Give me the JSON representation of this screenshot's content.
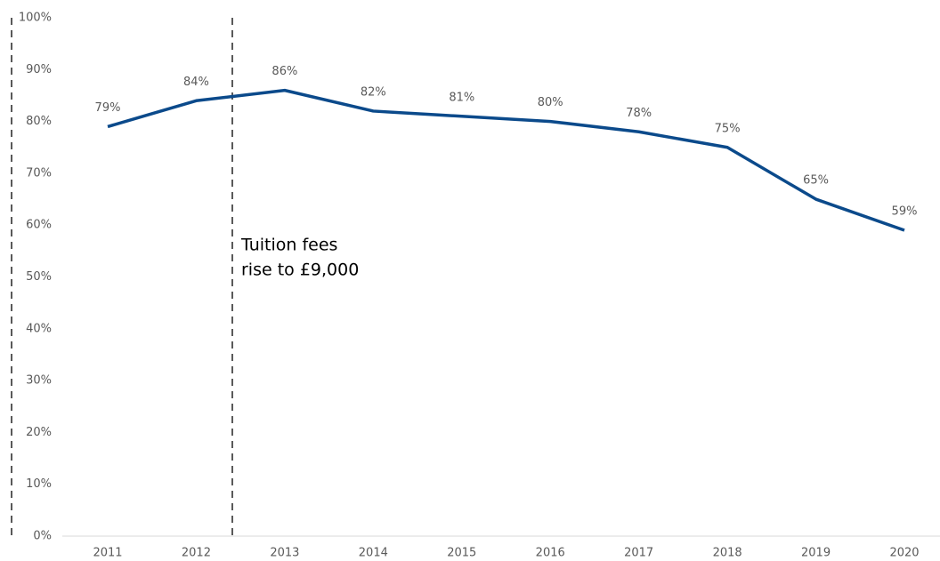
{
  "chart_data": {
    "type": "line",
    "categories": [
      "2011",
      "2012",
      "2013",
      "2014",
      "2015",
      "2016",
      "2017",
      "2018",
      "2019",
      "2020"
    ],
    "series": [
      {
        "name": null,
        "color": "#0b4a8b",
        "values": [
          79,
          84,
          86,
          82,
          81,
          80,
          78,
          75,
          65,
          59
        ],
        "value_labels": [
          "79%",
          "84%",
          "86%",
          "82%",
          "81%",
          "80%",
          "78%",
          "75%",
          "65%",
          "59%"
        ]
      }
    ],
    "ylim": [
      0,
      100
    ],
    "yticks": [
      {
        "value": 0,
        "label": "0%"
      },
      {
        "value": 10,
        "label": "10%"
      },
      {
        "value": 20,
        "label": "20%"
      },
      {
        "value": 30,
        "label": "30%"
      },
      {
        "value": 40,
        "label": "40%"
      },
      {
        "value": 50,
        "label": "50%"
      },
      {
        "value": 60,
        "label": "60%"
      },
      {
        "value": 70,
        "label": "70%"
      },
      {
        "value": 80,
        "label": "80%"
      },
      {
        "value": 90,
        "label": "90%"
      },
      {
        "value": 100,
        "label": "100%"
      }
    ],
    "grid": false,
    "annotation": [
      "Tuition fees",
      "rise to £9,000"
    ]
  }
}
